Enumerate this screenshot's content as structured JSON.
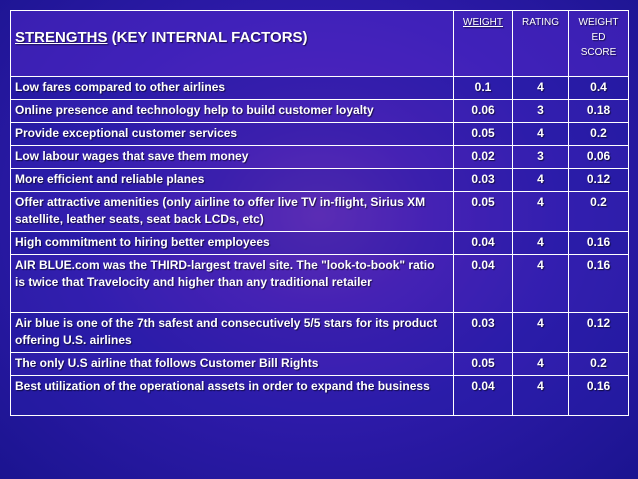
{
  "header": {
    "title_main": "STRENGTHS",
    "title_rest": " (KEY INTERNAL FACTORS)",
    "weight": "WEIGHT",
    "rating": "RATING",
    "weighted_score_1": "WEIGHT",
    "weighted_score_2": "ED",
    "weighted_score_3": "SCORE"
  },
  "rows": [
    {
      "factor": "Low fares compared to other airlines",
      "weight": "0.1",
      "rating": "4",
      "score": "0.4"
    },
    {
      "factor": "Online presence and technology help to build customer loyalty",
      "weight": "0.06",
      "rating": "3",
      "score": "0.18"
    },
    {
      "factor": "Provide exceptional customer services",
      "weight": "0.05",
      "rating": "4",
      "score": "0.2"
    },
    {
      "factor": "Low labour wages that save them money",
      "weight": "0.02",
      "rating": "3",
      "score": "0.06"
    },
    {
      "factor": "More efficient and reliable planes",
      "weight": "0.03",
      "rating": "4",
      "score": "0.12"
    },
    {
      "factor": "Offer attractive amenities (only airline to offer live TV in-flight, Sirius XM satellite, leather seats, seat back LCDs, etc)",
      "weight": "0.05",
      "rating": "4",
      "score": "0.2"
    },
    {
      "factor": "High commitment to hiring better employees",
      "weight": "0.04",
      "rating": "4",
      "score": "0.16"
    },
    {
      "factor": "AIR BLUE.com was the THIRD-largest travel site. The \"look-to-book\" ratio is twice that Travelocity and higher than any traditional retailer",
      "weight": "0.04",
      "rating": "4",
      "score": "0.16"
    },
    {
      "factor": "Air blue is one of the 7th safest and consecutively 5/5 stars for its product offering U.S. airlines",
      "weight": "0.03",
      "rating": "4",
      "score": "0.12"
    },
    {
      "factor": "The only U.S airline that follows Customer Bill Rights",
      "weight": "0.05",
      "rating": "4",
      "score": "0.2"
    },
    {
      "factor": "Best utilization of the operational assets in order to expand the business",
      "weight": "0.04",
      "rating": "4",
      "score": "0.16"
    }
  ]
}
